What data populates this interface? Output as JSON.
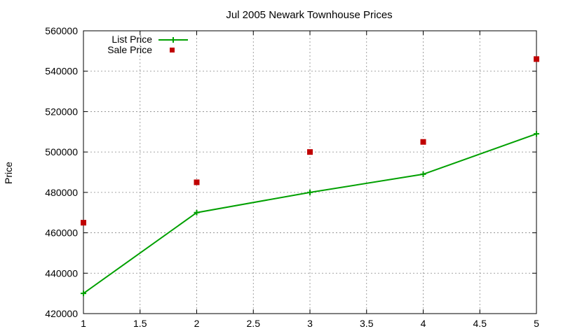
{
  "chart_data": {
    "type": "line",
    "title": "Jul 2005 Newark Townhouse Prices",
    "xlabel": "",
    "ylabel": "Price",
    "xlim": [
      1,
      5
    ],
    "ylim": [
      420000,
      560000
    ],
    "x_ticks": [
      "1",
      "1.5",
      "2",
      "2.5",
      "3",
      "3.5",
      "4",
      "4.5",
      "5"
    ],
    "y_ticks": [
      "420000",
      "440000",
      "460000",
      "480000",
      "500000",
      "520000",
      "540000",
      "560000"
    ],
    "grid": true,
    "legend_position": "top-left",
    "series": [
      {
        "name": "List Price",
        "style": "line-with-plus-markers",
        "color": "#00a000",
        "x": [
          1,
          2,
          3,
          4,
          5
        ],
        "values": [
          430000,
          470000,
          480000,
          489000,
          509000
        ]
      },
      {
        "name": "Sale Price",
        "style": "square-markers",
        "color": "#c00000",
        "x": [
          1,
          2,
          3,
          4,
          5
        ],
        "values": [
          465000,
          485000,
          500000,
          505000,
          546000
        ]
      }
    ]
  }
}
